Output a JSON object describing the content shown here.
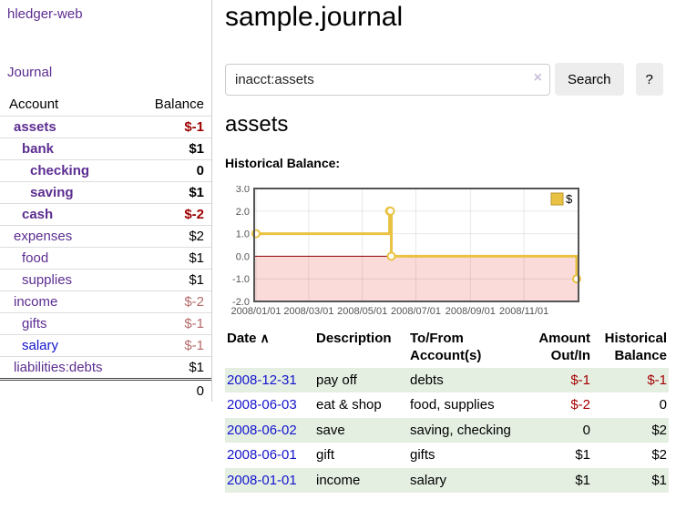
{
  "app": {
    "title": "hledger-web",
    "nav_journal": "Journal"
  },
  "sidebar": {
    "columns": [
      "Account",
      "Balance"
    ],
    "accounts": [
      {
        "name": "assets",
        "depth": 1,
        "bold": true,
        "balance": "$-1",
        "neg": "dark"
      },
      {
        "name": "bank",
        "depth": 2,
        "bold": true,
        "balance": "$1",
        "neg": "none"
      },
      {
        "name": "checking",
        "depth": 3,
        "bold": true,
        "balance": "0",
        "neg": "none"
      },
      {
        "name": "saving",
        "depth": 3,
        "bold": true,
        "balance": "$1",
        "neg": "none"
      },
      {
        "name": "cash",
        "depth": 2,
        "bold": true,
        "balance": "$-2",
        "neg": "dark"
      },
      {
        "name": "expenses",
        "depth": 1,
        "bold": false,
        "balance": "$2",
        "neg": "none"
      },
      {
        "name": "food",
        "depth": 2,
        "bold": false,
        "balance": "$1",
        "neg": "none"
      },
      {
        "name": "supplies",
        "depth": 2,
        "bold": false,
        "balance": "$1",
        "neg": "none"
      },
      {
        "name": "income",
        "depth": 1,
        "bold": false,
        "balance": "$-2",
        "neg": "light"
      },
      {
        "name": "gifts",
        "depth": 2,
        "bold": false,
        "balance": "$-1",
        "neg": "light"
      },
      {
        "name": "salary",
        "depth": 2,
        "bold": false,
        "balance": "$-1",
        "neg": "light",
        "blue": true
      },
      {
        "name": "liabilities:debts",
        "depth": 1,
        "bold": false,
        "balance": "$1",
        "neg": "none"
      }
    ],
    "total": "0"
  },
  "header": {
    "title": "sample.journal"
  },
  "search": {
    "value": "inacct:assets",
    "clear_icon": "×",
    "button": "Search",
    "help_button": "?"
  },
  "account_page": {
    "heading": "assets",
    "chart_label": "Historical Balance:"
  },
  "chart_data": {
    "type": "line",
    "title": "Historical Balance:",
    "series": [
      {
        "name": "$",
        "color": "#e9c243",
        "marker_fill": "#ffffff",
        "step": true,
        "points": [
          [
            "2008/01/01",
            1.0
          ],
          [
            "2008/06/01",
            2.0
          ],
          [
            "2008/06/02",
            2.0
          ],
          [
            "2008/06/03",
            0.0
          ],
          [
            "2008/12/31",
            -1.0
          ]
        ]
      }
    ],
    "x_ticks": [
      "2008/01/01",
      "2008/03/01",
      "2008/05/01",
      "2008/07/01",
      "2008/09/01",
      "2008/11/01"
    ],
    "y_ticks": [
      "3.0",
      "2.0",
      "1.0",
      "0.0",
      "-1.0",
      "-2.0"
    ],
    "ylim": [
      -2,
      3
    ],
    "xlim": [
      "2008/01/01",
      "2008/12/31"
    ],
    "grid": true,
    "negative_fill": "#fbdbda",
    "zero_line_color": "#8b0000",
    "border_color": "#545454",
    "tick_color": "#545454",
    "legend": {
      "label": "$",
      "position": "top-right",
      "swatch_fill": "#e9c243",
      "swatch_border": "#b8952e"
    }
  },
  "register": {
    "sort_icon": "∧",
    "headers": [
      "Date",
      "Description",
      "To/From Account(s)",
      "Amount Out/In",
      "Historical Balance"
    ],
    "rows": [
      {
        "date": "2008-12-31",
        "description": "pay off",
        "accounts": "debts",
        "amount": "$-1",
        "amount_neg": true,
        "balance": "$-1",
        "balance_neg": true
      },
      {
        "date": "2008-06-03",
        "description": "eat & shop",
        "accounts": "food, supplies",
        "amount": "$-2",
        "amount_neg": true,
        "balance": "0",
        "balance_neg": false
      },
      {
        "date": "2008-06-02",
        "description": "save",
        "accounts": "saving, checking",
        "amount": "0",
        "amount_neg": false,
        "balance": "$2",
        "balance_neg": false
      },
      {
        "date": "2008-06-01",
        "description": "gift",
        "accounts": "gifts",
        "amount": "$1",
        "amount_neg": false,
        "balance": "$2",
        "balance_neg": false
      },
      {
        "date": "2008-01-01",
        "description": "income",
        "accounts": "salary",
        "amount": "$1",
        "amount_neg": false,
        "balance": "$1",
        "balance_neg": false
      }
    ]
  }
}
